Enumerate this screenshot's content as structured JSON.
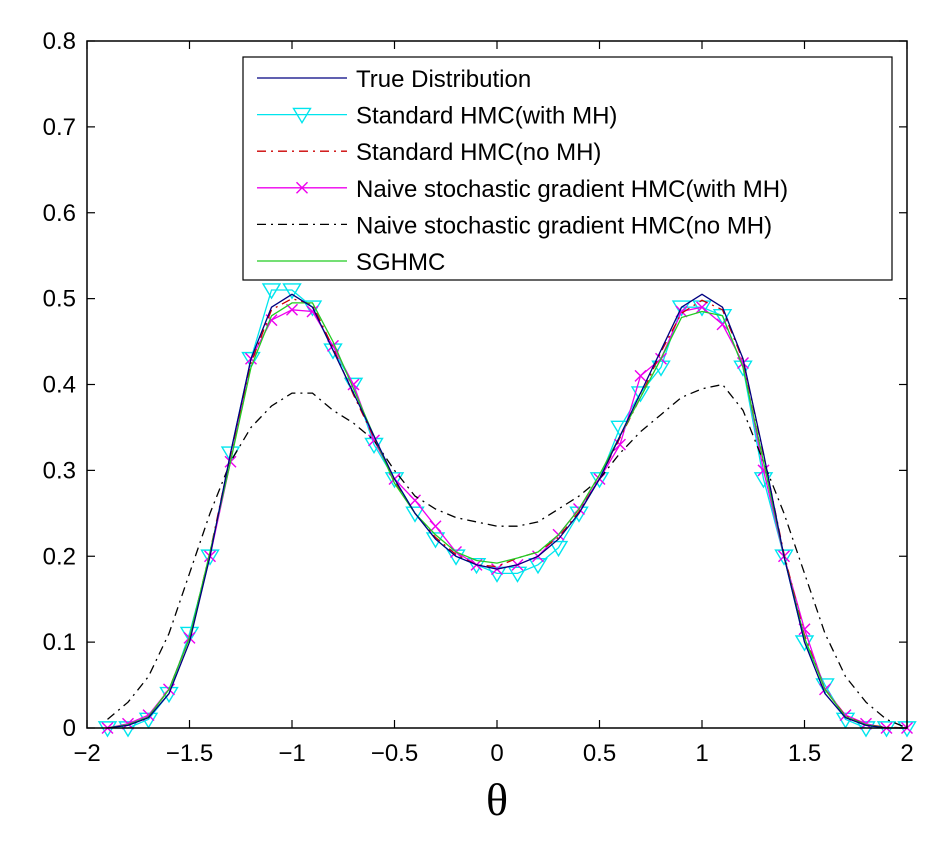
{
  "chart_data": {
    "type": "line",
    "title": "",
    "xlabel": "θ",
    "ylabel": "",
    "xlim": [
      -2,
      2
    ],
    "ylim": [
      0,
      0.8
    ],
    "xticks": [
      -2,
      -1.5,
      -1,
      -0.5,
      0,
      0.5,
      1,
      1.5,
      2
    ],
    "xtick_labels": [
      "−2",
      "−1.5",
      "−1",
      "−0.5",
      "0",
      "0.5",
      "1",
      "1.5",
      "2"
    ],
    "yticks": [
      0,
      0.1,
      0.2,
      0.3,
      0.4,
      0.5,
      0.6,
      0.7,
      0.8
    ],
    "ytick_labels": [
      "0",
      "0.1",
      "0.2",
      "0.3",
      "0.4",
      "0.5",
      "0.6",
      "0.7",
      "0.8"
    ],
    "grid": false,
    "legend_position": "top-right",
    "x": [
      -1.9,
      -1.8,
      -1.7,
      -1.6,
      -1.5,
      -1.4,
      -1.3,
      -1.2,
      -1.1,
      -1.0,
      -0.9,
      -0.8,
      -0.7,
      -0.6,
      -0.5,
      -0.4,
      -0.3,
      -0.2,
      -0.1,
      0.0,
      0.1,
      0.2,
      0.3,
      0.4,
      0.5,
      0.6,
      0.7,
      0.8,
      0.9,
      1.0,
      1.1,
      1.2,
      1.3,
      1.4,
      1.5,
      1.6,
      1.7,
      1.8,
      1.9,
      2.0
    ],
    "series": [
      {
        "name": "True Distribution",
        "color": "#000080",
        "dash": "",
        "marker": "none",
        "values": [
          0.0,
          0.003,
          0.012,
          0.04,
          0.1,
          0.2,
          0.32,
          0.43,
          0.49,
          0.505,
          0.49,
          0.44,
          0.39,
          0.34,
          0.29,
          0.25,
          0.22,
          0.2,
          0.19,
          0.185,
          0.19,
          0.2,
          0.22,
          0.25,
          0.29,
          0.34,
          0.39,
          0.44,
          0.49,
          0.505,
          0.49,
          0.43,
          0.32,
          0.2,
          0.1,
          0.04,
          0.012,
          0.003,
          0.0,
          0.0
        ]
      },
      {
        "name": "Standard HMC(with MH)",
        "color": "#00e5ee",
        "dash": "",
        "marker": "triangle-down",
        "values": [
          0.0,
          0.0,
          0.01,
          0.04,
          0.11,
          0.2,
          0.32,
          0.43,
          0.51,
          0.51,
          0.49,
          0.44,
          0.4,
          0.33,
          0.29,
          0.25,
          0.22,
          0.2,
          0.19,
          0.18,
          0.18,
          0.19,
          0.21,
          0.25,
          0.29,
          0.35,
          0.39,
          0.42,
          0.49,
          0.49,
          0.48,
          0.42,
          0.29,
          0.2,
          0.1,
          0.05,
          0.01,
          0.0,
          0.0,
          0.0
        ]
      },
      {
        "name": "Standard HMC(no MH)",
        "color": "#cc0000",
        "dash": "9,5,2,5",
        "marker": "none",
        "values": [
          0.0,
          0.004,
          0.013,
          0.045,
          0.105,
          0.205,
          0.318,
          0.425,
          0.487,
          0.5,
          0.493,
          0.443,
          0.388,
          0.338,
          0.288,
          0.25,
          0.222,
          0.202,
          0.19,
          0.188,
          0.198,
          0.205,
          0.222,
          0.252,
          0.29,
          0.338,
          0.385,
          0.438,
          0.483,
          0.498,
          0.487,
          0.428,
          0.318,
          0.203,
          0.108,
          0.045,
          0.014,
          0.004,
          0.001,
          0.0
        ]
      },
      {
        "name": "Naive stochastic gradient HMC(with MH)",
        "color": "#ee00ee",
        "dash": "",
        "marker": "x",
        "values": [
          0.0,
          0.005,
          0.015,
          0.045,
          0.105,
          0.2,
          0.31,
          0.43,
          0.475,
          0.487,
          0.485,
          0.445,
          0.4,
          0.335,
          0.29,
          0.265,
          0.235,
          0.205,
          0.19,
          0.185,
          0.19,
          0.2,
          0.225,
          0.255,
          0.29,
          0.33,
          0.41,
          0.43,
          0.485,
          0.49,
          0.47,
          0.425,
          0.3,
          0.2,
          0.115,
          0.045,
          0.015,
          0.005,
          0.0,
          0.0
        ]
      },
      {
        "name": "Naive stochastic gradient HMC(no MH)",
        "color": "#000000",
        "dash": "9,5,2,5",
        "marker": "none",
        "values": [
          0.01,
          0.03,
          0.06,
          0.11,
          0.18,
          0.25,
          0.31,
          0.35,
          0.375,
          0.39,
          0.39,
          0.37,
          0.355,
          0.335,
          0.3,
          0.27,
          0.255,
          0.245,
          0.24,
          0.235,
          0.235,
          0.24,
          0.255,
          0.27,
          0.29,
          0.32,
          0.345,
          0.365,
          0.385,
          0.395,
          0.4,
          0.37,
          0.31,
          0.25,
          0.18,
          0.11,
          0.06,
          0.03,
          0.01,
          0.0
        ]
      },
      {
        "name": "SGHMC",
        "color": "#22cc22",
        "dash": "",
        "marker": "none",
        "values": [
          0.0,
          0.004,
          0.013,
          0.045,
          0.105,
          0.205,
          0.31,
          0.42,
          0.48,
          0.495,
          0.495,
          0.45,
          0.395,
          0.34,
          0.285,
          0.25,
          0.225,
          0.205,
          0.195,
          0.192,
          0.198,
          0.205,
          0.225,
          0.255,
          0.295,
          0.34,
          0.385,
          0.43,
          0.478,
          0.485,
          0.48,
          0.42,
          0.31,
          0.2,
          0.105,
          0.045,
          0.013,
          0.004,
          0.0,
          0.0
        ]
      }
    ]
  }
}
